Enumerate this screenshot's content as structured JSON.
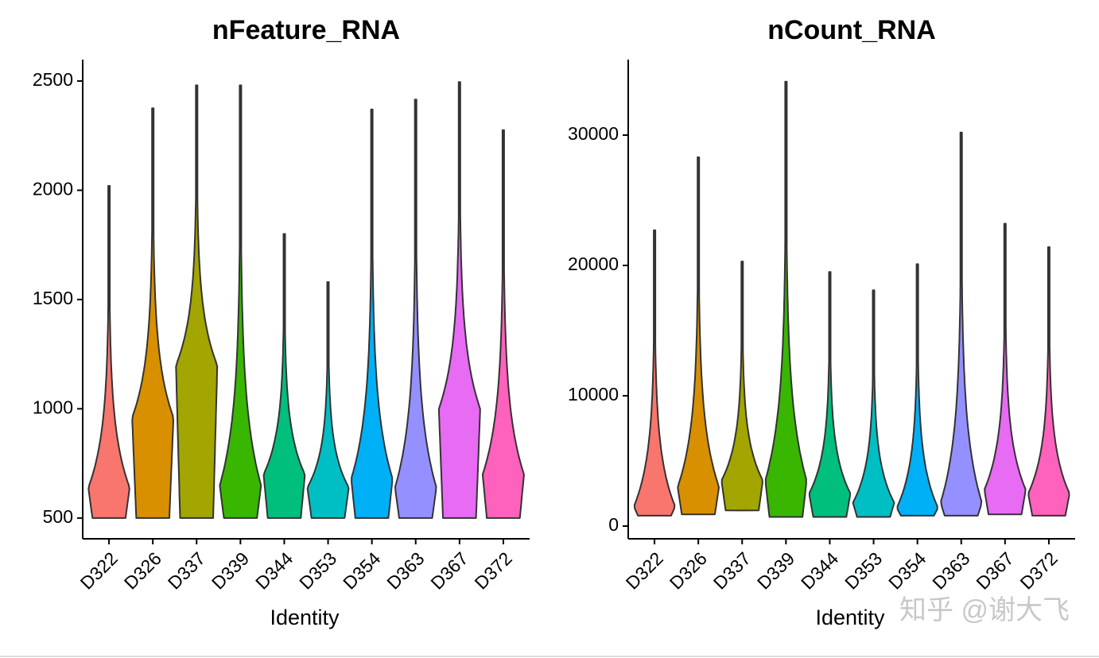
{
  "chart_data": [
    {
      "type": "violin",
      "title": "nFeature_RNA",
      "x_label": "Identity",
      "categories": [
        "D322",
        "D326",
        "D337",
        "D339",
        "D344",
        "D353",
        "D354",
        "D363",
        "D367",
        "D372"
      ],
      "colors": [
        "#F8766D",
        "#D89000",
        "#A3A500",
        "#39B600",
        "#00BF7D",
        "#00BFC4",
        "#00B0F6",
        "#9590FF",
        "#E76BF3",
        "#FF62BC"
      ],
      "max": [
        2020,
        2375,
        2480,
        2480,
        1800,
        1580,
        2370,
        2415,
        2495,
        2275
      ],
      "min": [
        500,
        500,
        500,
        500,
        500,
        500,
        500,
        500,
        500,
        500
      ],
      "peak": [
        640,
        960,
        1200,
        650,
        700,
        640,
        680,
        640,
        1000,
        700
      ],
      "ylim": [
        405,
        2598
      ],
      "yticks": [
        500,
        1000,
        1500,
        2000,
        2500
      ]
    },
    {
      "type": "violin",
      "title": "nCount_RNA",
      "x_label": "Identity",
      "categories": [
        "D322",
        "D326",
        "D337",
        "D339",
        "D344",
        "D353",
        "D354",
        "D363",
        "D367",
        "D372"
      ],
      "colors": [
        "#F8766D",
        "#D89000",
        "#A3A500",
        "#39B600",
        "#00BF7D",
        "#00BFC4",
        "#00B0F6",
        "#9590FF",
        "#E76BF3",
        "#FF62BC"
      ],
      "max": [
        22700,
        28300,
        20300,
        34100,
        19500,
        18100,
        20100,
        30200,
        23200,
        21400
      ],
      "min": [
        800,
        900,
        1200,
        700,
        700,
        700,
        800,
        800,
        900,
        800
      ],
      "peak": [
        1500,
        3000,
        3500,
        3500,
        2500,
        1800,
        1400,
        1800,
        2800,
        2500
      ],
      "ylim": [
        -976,
        35793
      ],
      "yticks": [
        0,
        10000,
        20000,
        30000
      ]
    }
  ],
  "watermark": "知乎 @谢大飞"
}
